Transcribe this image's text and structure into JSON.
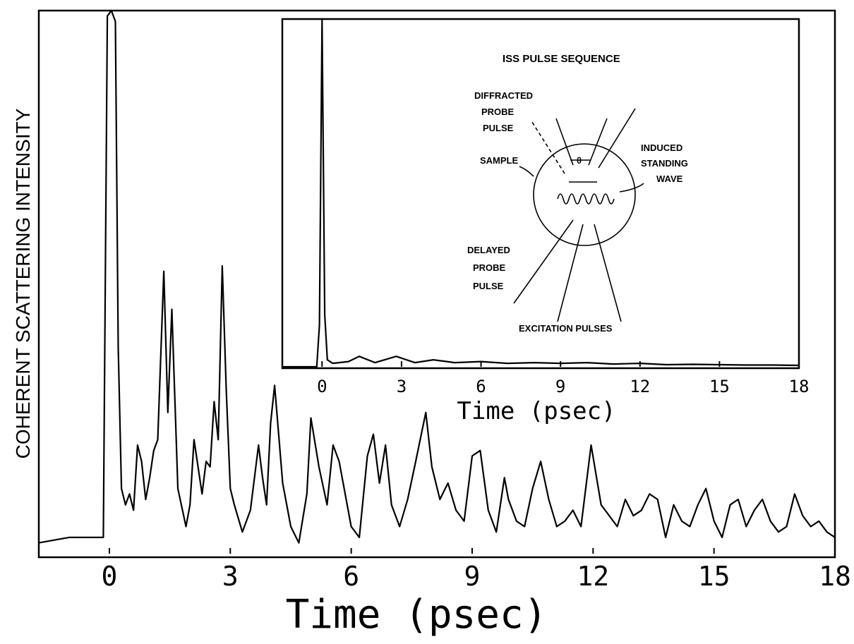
{
  "chart_data": [
    {
      "type": "line",
      "title": "",
      "xlabel": "Time (psec)",
      "ylabel": "COHERENT SCATTERING INTENSITY",
      "x_ticks": [
        "0",
        "3",
        "6",
        "9",
        "12",
        "15",
        "18"
      ],
      "xlim": [
        -1.75,
        18
      ],
      "ylim": [
        0,
        1
      ],
      "grid": false,
      "series": [
        {
          "x": [
            -1.75,
            -1.0,
            -0.5,
            -0.15,
            -0.05,
            0.05,
            0.15,
            0.22,
            0.3,
            0.4,
            0.5,
            0.6,
            0.7,
            0.8,
            0.9,
            1.0,
            1.1,
            1.2,
            1.35,
            1.45,
            1.55,
            1.7,
            1.9,
            2.0,
            2.1,
            2.2,
            2.3,
            2.4,
            2.5,
            2.6,
            2.7,
            2.8,
            2.9,
            3.0,
            3.1,
            3.3,
            3.5,
            3.7,
            3.8,
            3.9,
            4.0,
            4.1,
            4.2,
            4.3,
            4.5,
            4.7,
            4.9,
            5.0,
            5.2,
            5.4,
            5.55,
            5.7,
            5.8,
            6.0,
            6.2,
            6.4,
            6.55,
            6.7,
            6.85,
            7.0,
            7.2,
            7.4,
            7.6,
            7.85,
            8.0,
            8.2,
            8.4,
            8.6,
            8.8,
            9.0,
            9.2,
            9.4,
            9.6,
            9.8,
            9.9,
            10.1,
            10.3,
            10.5,
            10.7,
            10.9,
            11.1,
            11.3,
            11.5,
            11.7,
            11.95,
            12.2,
            12.4,
            12.6,
            12.8,
            13.0,
            13.2,
            13.4,
            13.6,
            13.8,
            14.0,
            14.2,
            14.4,
            14.6,
            14.8,
            15.0,
            15.2,
            15.4,
            15.6,
            15.8,
            16.0,
            16.2,
            16.4,
            16.6,
            16.8,
            17.0,
            17.2,
            17.4,
            17.6,
            17.8,
            18.0
          ],
          "values": [
            0.02,
            0.03,
            0.03,
            0.03,
            0.99,
            1.0,
            0.98,
            0.38,
            0.12,
            0.09,
            0.11,
            0.08,
            0.2,
            0.17,
            0.1,
            0.14,
            0.19,
            0.21,
            0.52,
            0.26,
            0.45,
            0.12,
            0.05,
            0.09,
            0.21,
            0.16,
            0.11,
            0.17,
            0.16,
            0.28,
            0.21,
            0.53,
            0.3,
            0.12,
            0.09,
            0.04,
            0.08,
            0.2,
            0.14,
            0.09,
            0.24,
            0.31,
            0.22,
            0.13,
            0.05,
            0.02,
            0.11,
            0.25,
            0.16,
            0.09,
            0.2,
            0.17,
            0.13,
            0.05,
            0.03,
            0.18,
            0.22,
            0.13,
            0.2,
            0.09,
            0.05,
            0.1,
            0.17,
            0.26,
            0.16,
            0.1,
            0.13,
            0.08,
            0.06,
            0.18,
            0.19,
            0.08,
            0.04,
            0.14,
            0.1,
            0.06,
            0.05,
            0.12,
            0.17,
            0.1,
            0.05,
            0.06,
            0.08,
            0.05,
            0.2,
            0.09,
            0.07,
            0.05,
            0.1,
            0.07,
            0.08,
            0.11,
            0.1,
            0.03,
            0.09,
            0.06,
            0.05,
            0.09,
            0.12,
            0.06,
            0.03,
            0.09,
            0.1,
            0.05,
            0.08,
            0.1,
            0.06,
            0.04,
            0.05,
            0.11,
            0.07,
            0.05,
            0.06,
            0.04,
            0.03
          ]
        }
      ]
    },
    {
      "type": "line",
      "title": "",
      "xlabel": "Time (psec)",
      "ylabel": "",
      "x_ticks": [
        "0",
        "3",
        "6",
        "9",
        "12",
        "15",
        "18"
      ],
      "xlim": [
        -1.5,
        18
      ],
      "ylim": [
        0,
        1
      ],
      "series": [
        {
          "x": [
            -1.5,
            -0.2,
            -0.1,
            0.0,
            0.1,
            0.2,
            0.4,
            1.0,
            1.4,
            2.0,
            2.8,
            3.5,
            4.2,
            5.0,
            6.0,
            7.0,
            8.0,
            9.0,
            10.0,
            11.0,
            12.0,
            13.0,
            14.0,
            15.0,
            16.0,
            17.0,
            18.0
          ],
          "values": [
            0.0,
            0.0,
            0.12,
            1.0,
            0.15,
            0.02,
            0.01,
            0.015,
            0.03,
            0.012,
            0.03,
            0.012,
            0.02,
            0.012,
            0.015,
            0.01,
            0.012,
            0.01,
            0.012,
            0.008,
            0.01,
            0.006,
            0.007,
            0.006,
            0.005,
            0.005,
            0.004
          ]
        }
      ]
    }
  ],
  "inset_diagram": {
    "title": "ISS PULSE SEQUENCE",
    "labels": {
      "diffracted": [
        "DIFFRACTED",
        "PROBE",
        "PULSE"
      ],
      "sample": "SAMPLE",
      "induced": [
        "INDUCED",
        "STANDING",
        "WAVE"
      ],
      "delayed": [
        "DELAYED",
        "PROBE",
        "PULSE"
      ],
      "excitation": "EXCITATION PULSES",
      "theta": "θ"
    }
  }
}
